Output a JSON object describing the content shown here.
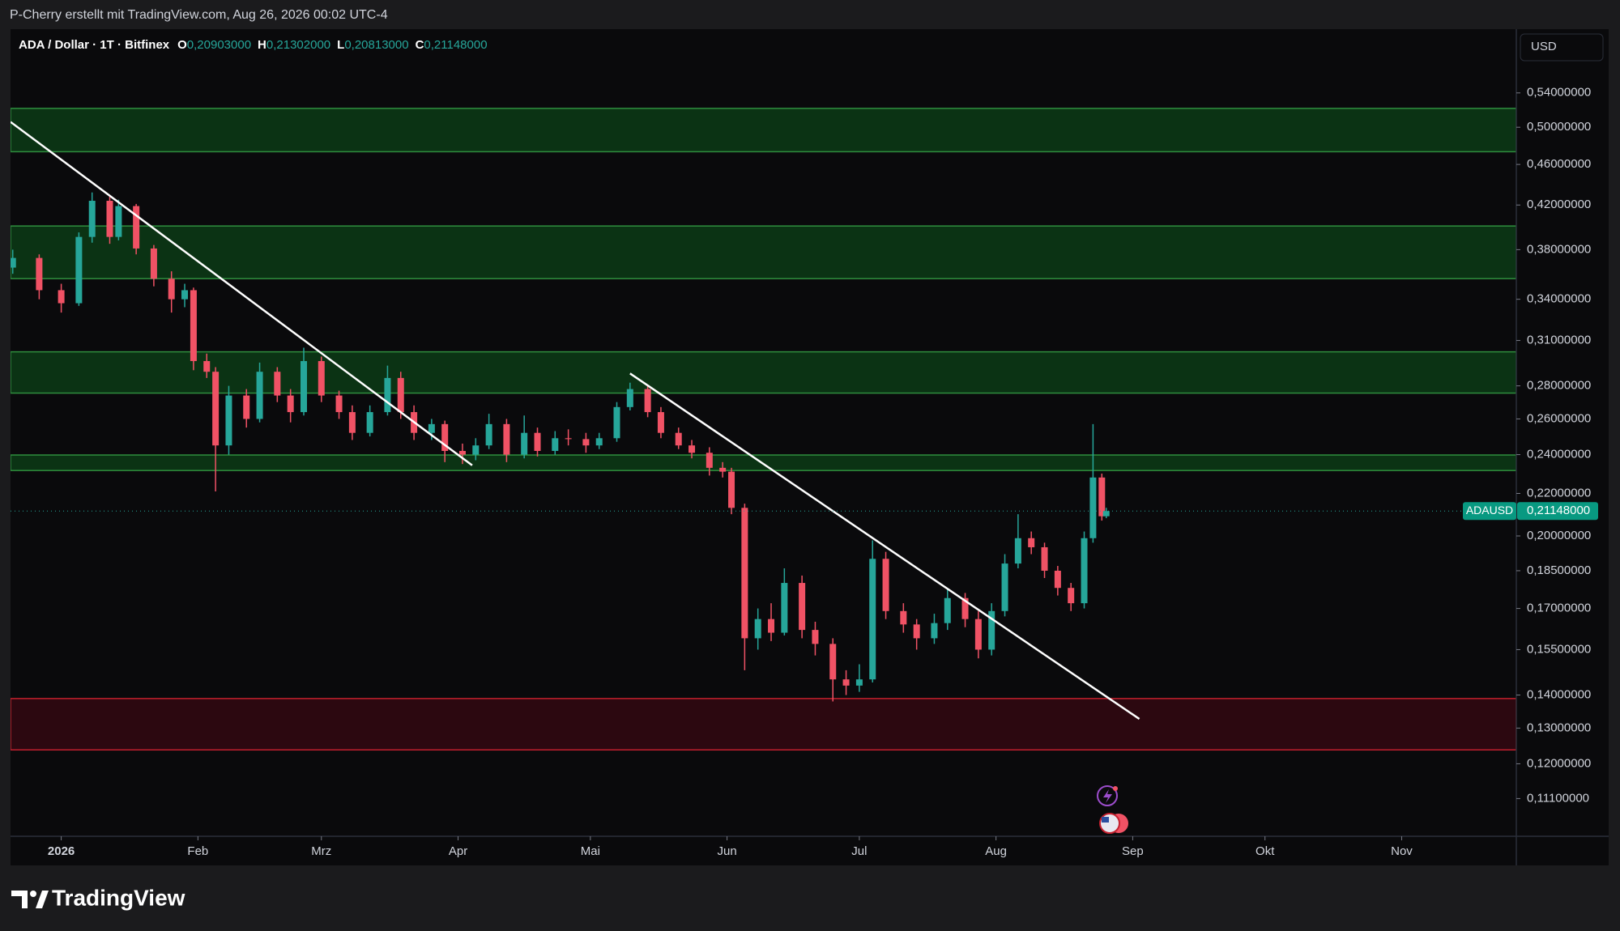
{
  "header": "P-Cherry erstellt mit TradingView.com, Aug 26, 2026 00:02 UTC-4",
  "brand": "TradingView",
  "chart_data": {
    "type": "candlestick",
    "title": "ADA / Dollar · 1T · Bitfinex",
    "ohlc_legend": [
      {
        "key": "O",
        "value": 0.20903,
        "label": "0,20903000"
      },
      {
        "key": "H",
        "value": 0.21302,
        "label": "0,21302000"
      },
      {
        "key": "L",
        "value": 0.20813,
        "label": "0,20813000"
      },
      {
        "key": "C",
        "value": 0.21148,
        "label": "0,21148000"
      }
    ],
    "currency": "USD",
    "symbol": "ADAUSD",
    "last_price": {
      "value": 0.21148,
      "label": "0,21148000"
    },
    "log_scale": true,
    "up_color": "#26a69a",
    "down_color": "#f05265",
    "xlim": [
      -11.5,
      330
    ],
    "xticks": [
      {
        "value": 0,
        "label": "2026"
      },
      {
        "value": 31,
        "label": "Feb"
      },
      {
        "value": 59,
        "label": "Mrz"
      },
      {
        "value": 90,
        "label": "Apr"
      },
      {
        "value": 120,
        "label": "Mai"
      },
      {
        "value": 151,
        "label": "Jun"
      },
      {
        "value": 181,
        "label": "Jul"
      },
      {
        "value": 212,
        "label": "Aug"
      },
      {
        "value": 243,
        "label": "Sep"
      },
      {
        "value": 273,
        "label": "Okt"
      },
      {
        "value": 304,
        "label": "Nov"
      }
    ],
    "ylim": [
      0.102,
      0.623
    ],
    "yticks": [
      {
        "value": 0.54,
        "label": "0,54000000"
      },
      {
        "value": 0.5,
        "label": "0,50000000"
      },
      {
        "value": 0.46,
        "label": "0,46000000"
      },
      {
        "value": 0.42,
        "label": "0,42000000"
      },
      {
        "value": 0.38,
        "label": "0,38000000"
      },
      {
        "value": 0.34,
        "label": "0,34000000"
      },
      {
        "value": 0.31,
        "label": "0,31000000"
      },
      {
        "value": 0.28,
        "label": "0,28000000"
      },
      {
        "value": 0.26,
        "label": "0,26000000"
      },
      {
        "value": 0.24,
        "label": "0,24000000"
      },
      {
        "value": 0.22,
        "label": "0,22000000"
      },
      {
        "value": 0.2,
        "label": "0,20000000"
      },
      {
        "value": 0.185,
        "label": "0,18500000"
      },
      {
        "value": 0.17,
        "label": "0,17000000"
      },
      {
        "value": 0.155,
        "label": "0,15500000"
      },
      {
        "value": 0.14,
        "label": "0,14000000"
      },
      {
        "value": 0.13,
        "label": "0,13000000"
      },
      {
        "value": 0.12,
        "label": "0,12000000"
      },
      {
        "value": 0.111,
        "label": "0,11100000"
      }
    ],
    "zones": [
      {
        "from": 0.4733,
        "to": 0.5216,
        "color": "#0b3314",
        "border": "#2f8f3e"
      },
      {
        "from": 0.3561,
        "to": 0.4007,
        "color": "#0b3314",
        "border": "#2f8f3e"
      },
      {
        "from": 0.2755,
        "to": 0.3022,
        "color": "#0b3314",
        "border": "#2f8f3e"
      },
      {
        "from": 0.2316,
        "to": 0.2398,
        "color": "#0b3314",
        "border": "#2f8f3e"
      },
      {
        "from": 0.1238,
        "to": 0.1389,
        "color": "#2c0810",
        "border": "#c4202e"
      }
    ],
    "trendlines": [
      {
        "x": [
          -11.5,
          93.2
        ],
        "y": [
          0.506,
          0.2343
        ]
      },
      {
        "x": [
          129.0,
          244.5
        ],
        "y": [
          0.2879,
          0.1327
        ]
      }
    ],
    "candles": [
      {
        "x": -11,
        "o": 0.365,
        "h": 0.38,
        "l": 0.36,
        "c": 0.373
      },
      {
        "x": -5,
        "o": 0.373,
        "h": 0.376,
        "l": 0.34,
        "c": 0.347
      },
      {
        "x": 0,
        "o": 0.347,
        "h": 0.352,
        "l": 0.33,
        "c": 0.337
      },
      {
        "x": 4,
        "o": 0.337,
        "h": 0.395,
        "l": 0.335,
        "c": 0.391
      },
      {
        "x": 7,
        "o": 0.391,
        "h": 0.432,
        "l": 0.386,
        "c": 0.424
      },
      {
        "x": 11,
        "o": 0.424,
        "h": 0.428,
        "l": 0.385,
        "c": 0.391
      },
      {
        "x": 13,
        "o": 0.391,
        "h": 0.425,
        "l": 0.388,
        "c": 0.419
      },
      {
        "x": 17,
        "o": 0.419,
        "h": 0.421,
        "l": 0.376,
        "c": 0.381
      },
      {
        "x": 21,
        "o": 0.381,
        "h": 0.384,
        "l": 0.35,
        "c": 0.356
      },
      {
        "x": 25,
        "o": 0.356,
        "h": 0.362,
        "l": 0.33,
        "c": 0.34
      },
      {
        "x": 28,
        "o": 0.34,
        "h": 0.352,
        "l": 0.334,
        "c": 0.347
      },
      {
        "x": 30,
        "o": 0.347,
        "h": 0.349,
        "l": 0.29,
        "c": 0.296
      },
      {
        "x": 33,
        "o": 0.296,
        "h": 0.301,
        "l": 0.285,
        "c": 0.289
      },
      {
        "x": 35,
        "o": 0.289,
        "h": 0.292,
        "l": 0.221,
        "c": 0.245
      },
      {
        "x": 38,
        "o": 0.245,
        "h": 0.28,
        "l": 0.24,
        "c": 0.274
      },
      {
        "x": 42,
        "o": 0.274,
        "h": 0.278,
        "l": 0.255,
        "c": 0.26
      },
      {
        "x": 45,
        "o": 0.26,
        "h": 0.295,
        "l": 0.258,
        "c": 0.289
      },
      {
        "x": 49,
        "o": 0.289,
        "h": 0.292,
        "l": 0.27,
        "c": 0.274
      },
      {
        "x": 52,
        "o": 0.274,
        "h": 0.278,
        "l": 0.258,
        "c": 0.264
      },
      {
        "x": 55,
        "o": 0.264,
        "h": 0.305,
        "l": 0.262,
        "c": 0.296
      },
      {
        "x": 59,
        "o": 0.296,
        "h": 0.299,
        "l": 0.27,
        "c": 0.274
      },
      {
        "x": 63,
        "o": 0.274,
        "h": 0.277,
        "l": 0.26,
        "c": 0.264
      },
      {
        "x": 66,
        "o": 0.264,
        "h": 0.268,
        "l": 0.248,
        "c": 0.252
      },
      {
        "x": 70,
        "o": 0.252,
        "h": 0.268,
        "l": 0.25,
        "c": 0.264
      },
      {
        "x": 74,
        "o": 0.264,
        "h": 0.293,
        "l": 0.262,
        "c": 0.285
      },
      {
        "x": 77,
        "o": 0.285,
        "h": 0.289,
        "l": 0.26,
        "c": 0.264
      },
      {
        "x": 80,
        "o": 0.264,
        "h": 0.268,
        "l": 0.248,
        "c": 0.252
      },
      {
        "x": 84,
        "o": 0.252,
        "h": 0.26,
        "l": 0.248,
        "c": 0.257
      },
      {
        "x": 87,
        "o": 0.257,
        "h": 0.259,
        "l": 0.236,
        "c": 0.242
      },
      {
        "x": 91,
        "o": 0.242,
        "h": 0.246,
        "l": 0.235,
        "c": 0.24
      },
      {
        "x": 94,
        "o": 0.24,
        "h": 0.249,
        "l": 0.237,
        "c": 0.245
      },
      {
        "x": 97,
        "o": 0.245,
        "h": 0.263,
        "l": 0.243,
        "c": 0.257
      },
      {
        "x": 101,
        "o": 0.257,
        "h": 0.26,
        "l": 0.236,
        "c": 0.24
      },
      {
        "x": 105,
        "o": 0.24,
        "h": 0.262,
        "l": 0.238,
        "c": 0.252
      },
      {
        "x": 108,
        "o": 0.252,
        "h": 0.255,
        "l": 0.239,
        "c": 0.242
      },
      {
        "x": 112,
        "o": 0.242,
        "h": 0.253,
        "l": 0.24,
        "c": 0.249
      },
      {
        "x": 115,
        "o": 0.249,
        "h": 0.254,
        "l": 0.245,
        "c": 0.2485
      },
      {
        "x": 119,
        "o": 0.2485,
        "h": 0.252,
        "l": 0.241,
        "c": 0.245
      },
      {
        "x": 122,
        "o": 0.245,
        "h": 0.252,
        "l": 0.243,
        "c": 0.249
      },
      {
        "x": 126,
        "o": 0.249,
        "h": 0.27,
        "l": 0.247,
        "c": 0.267
      },
      {
        "x": 129,
        "o": 0.267,
        "h": 0.282,
        "l": 0.265,
        "c": 0.278
      },
      {
        "x": 133,
        "o": 0.278,
        "h": 0.28,
        "l": 0.261,
        "c": 0.264
      },
      {
        "x": 136,
        "o": 0.264,
        "h": 0.267,
        "l": 0.249,
        "c": 0.252
      },
      {
        "x": 140,
        "o": 0.252,
        "h": 0.255,
        "l": 0.243,
        "c": 0.245
      },
      {
        "x": 143,
        "o": 0.245,
        "h": 0.248,
        "l": 0.238,
        "c": 0.241
      },
      {
        "x": 147,
        "o": 0.241,
        "h": 0.244,
        "l": 0.229,
        "c": 0.233
      },
      {
        "x": 150,
        "o": 0.233,
        "h": 0.236,
        "l": 0.228,
        "c": 0.231
      },
      {
        "x": 152,
        "o": 0.231,
        "h": 0.233,
        "l": 0.21,
        "c": 0.213
      },
      {
        "x": 155,
        "o": 0.213,
        "h": 0.215,
        "l": 0.148,
        "c": 0.159
      },
      {
        "x": 158,
        "o": 0.159,
        "h": 0.17,
        "l": 0.155,
        "c": 0.166
      },
      {
        "x": 161,
        "o": 0.166,
        "h": 0.172,
        "l": 0.158,
        "c": 0.161
      },
      {
        "x": 164,
        "o": 0.161,
        "h": 0.186,
        "l": 0.16,
        "c": 0.18
      },
      {
        "x": 168,
        "o": 0.18,
        "h": 0.183,
        "l": 0.159,
        "c": 0.162
      },
      {
        "x": 171,
        "o": 0.162,
        "h": 0.165,
        "l": 0.153,
        "c": 0.157
      },
      {
        "x": 175,
        "o": 0.157,
        "h": 0.159,
        "l": 0.138,
        "c": 0.145
      },
      {
        "x": 178,
        "o": 0.145,
        "h": 0.148,
        "l": 0.14,
        "c": 0.143
      },
      {
        "x": 181,
        "o": 0.143,
        "h": 0.15,
        "l": 0.141,
        "c": 0.145
      },
      {
        "x": 184,
        "o": 0.145,
        "h": 0.198,
        "l": 0.144,
        "c": 0.19
      },
      {
        "x": 187,
        "o": 0.19,
        "h": 0.193,
        "l": 0.166,
        "c": 0.169
      },
      {
        "x": 191,
        "o": 0.169,
        "h": 0.172,
        "l": 0.161,
        "c": 0.164
      },
      {
        "x": 194,
        "o": 0.164,
        "h": 0.166,
        "l": 0.155,
        "c": 0.159
      },
      {
        "x": 198,
        "o": 0.159,
        "h": 0.168,
        "l": 0.157,
        "c": 0.1645
      },
      {
        "x": 201,
        "o": 0.1645,
        "h": 0.178,
        "l": 0.162,
        "c": 0.174
      },
      {
        "x": 205,
        "o": 0.174,
        "h": 0.176,
        "l": 0.163,
        "c": 0.166
      },
      {
        "x": 208,
        "o": 0.166,
        "h": 0.169,
        "l": 0.152,
        "c": 0.155
      },
      {
        "x": 211,
        "o": 0.155,
        "h": 0.172,
        "l": 0.153,
        "c": 0.169
      },
      {
        "x": 214,
        "o": 0.169,
        "h": 0.192,
        "l": 0.167,
        "c": 0.188
      },
      {
        "x": 217,
        "o": 0.188,
        "h": 0.21,
        "l": 0.186,
        "c": 0.199
      },
      {
        "x": 220,
        "o": 0.199,
        "h": 0.202,
        "l": 0.192,
        "c": 0.195
      },
      {
        "x": 223,
        "o": 0.195,
        "h": 0.197,
        "l": 0.182,
        "c": 0.185
      },
      {
        "x": 226,
        "o": 0.185,
        "h": 0.187,
        "l": 0.175,
        "c": 0.178
      },
      {
        "x": 229,
        "o": 0.178,
        "h": 0.18,
        "l": 0.169,
        "c": 0.172
      },
      {
        "x": 232,
        "o": 0.172,
        "h": 0.202,
        "l": 0.17,
        "c": 0.199
      },
      {
        "x": 234,
        "o": 0.199,
        "h": 0.257,
        "l": 0.197,
        "c": 0.228
      },
      {
        "x": 236,
        "o": 0.228,
        "h": 0.23,
        "l": 0.207,
        "c": 0.20903
      },
      {
        "x": 237,
        "o": 0.20903,
        "h": 0.21302,
        "l": 0.20813,
        "c": 0.21148
      }
    ]
  }
}
